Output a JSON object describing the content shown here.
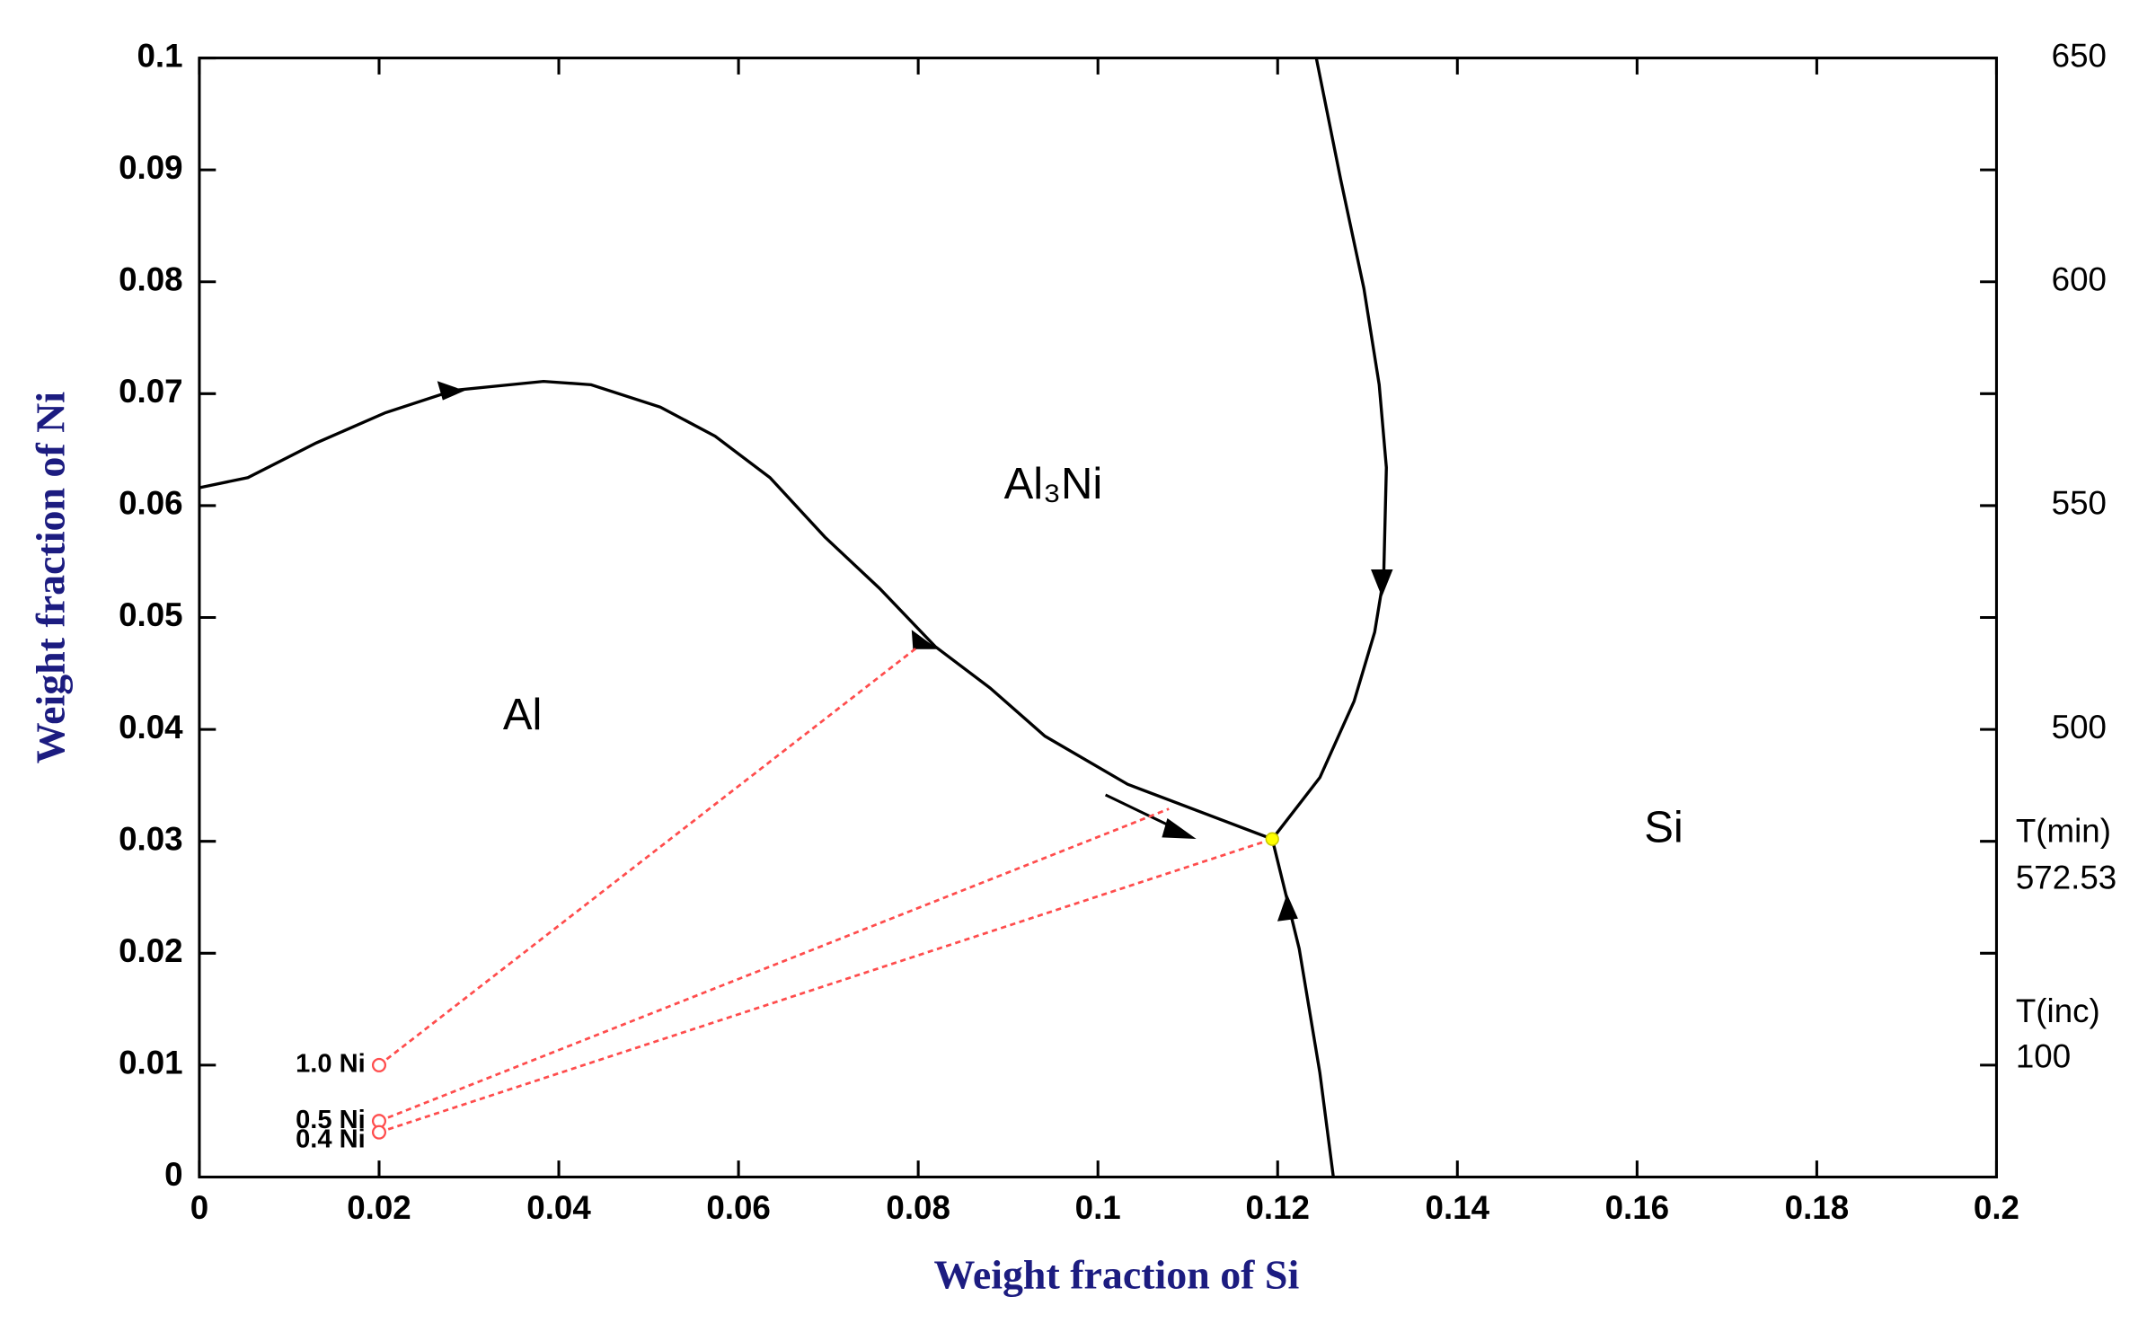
{
  "chart_data": {
    "type": "line",
    "x_label": "Weight fraction of Si",
    "y_label": "Weight fraction of Ni",
    "xlim": [
      0,
      0.2
    ],
    "xticks": [
      0,
      0.02,
      0.04,
      0.06,
      0.08,
      0.1,
      0.12,
      0.14,
      0.16,
      0.18,
      0.2
    ],
    "ylim": [
      0,
      0.1
    ],
    "yticks": [
      0,
      0.01,
      0.02,
      0.03,
      0.04,
      0.05,
      0.06,
      0.07,
      0.08,
      0.09,
      0.1
    ],
    "y2lim": [
      400,
      650
    ],
    "y2ticks": [
      500,
      550,
      600,
      650
    ],
    "series": [
      {
        "color": "#000000",
        "x": [
          0,
          0.0054,
          0.013,
          0.0207,
          0.0283,
          0.0383,
          0.0436,
          0.0513,
          0.0574,
          0.0635,
          0.0696,
          0.0757,
          0.0819,
          0.088,
          0.0941,
          0.1033,
          0.1125,
          0.1194
        ],
        "values": [
          0.0616,
          0.0625,
          0.0656,
          0.0683,
          0.0703,
          0.0711,
          0.0708,
          0.0688,
          0.0662,
          0.0625,
          0.0572,
          0.0526,
          0.0474,
          0.0437,
          0.0394,
          0.0351,
          0.0323,
          0.0302
        ]
      },
      {
        "color": "#000000",
        "x": [
          0.1243,
          0.127,
          0.1296,
          0.1313,
          0.1321,
          0.1318,
          0.1308,
          0.1285,
          0.1247,
          0.1194
        ],
        "values": [
          0.1,
          0.0892,
          0.0794,
          0.0708,
          0.0634,
          0.0536,
          0.0487,
          0.0425,
          0.0357,
          0.0302
        ]
      },
      {
        "color": "#000000",
        "x": [
          0.1262,
          0.1247,
          0.1224,
          0.1209,
          0.1194
        ],
        "values": [
          0,
          0.0093,
          0.0204,
          0.0253,
          0.0302
        ]
      }
    ],
    "tie_lines": [
      {
        "color": "#ff4d4d",
        "x": [
          0.02,
          0.08
        ],
        "values": [
          0.01,
          0.0474
        ]
      },
      {
        "color": "#ff4d4d",
        "x": [
          0.02,
          0.1079
        ],
        "values": [
          0.005,
          0.0329
        ]
      },
      {
        "color": "#ff4d4d",
        "x": [
          0.02,
          0.1194
        ],
        "values": [
          0.004,
          0.0302
        ]
      }
    ],
    "alloys": {
      "labels": [
        "1.0 Ni",
        "0.5 Ni",
        "0.4 Ni"
      ],
      "x": [
        0.02,
        0.02,
        0.02
      ],
      "values": [
        0.01,
        0.005,
        0.004
      ],
      "color": "#ff4d4d"
    },
    "eutectic": {
      "x": 0.1194,
      "value": 0.0302,
      "color": "#ffff00"
    },
    "regions": [
      "Al",
      "Al₃Ni",
      "Si"
    ],
    "annotations": [
      {
        "label": "T(min)",
        "value": 572.53
      },
      {
        "label": "T(inc)",
        "value": 100
      }
    ]
  }
}
